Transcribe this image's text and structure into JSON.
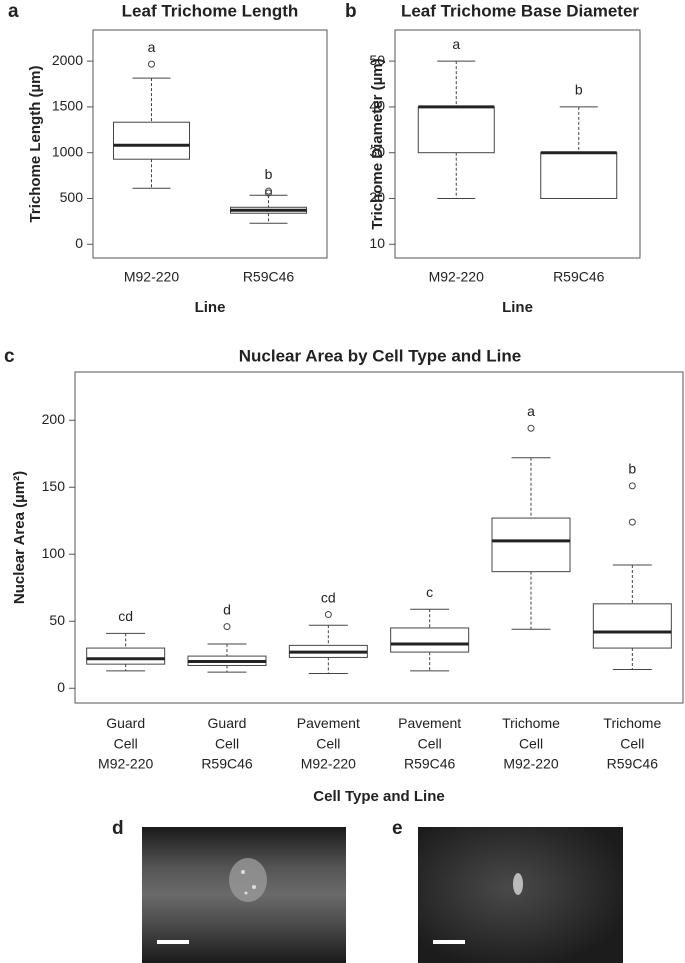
{
  "chart_data": [
    {
      "type": "box",
      "panel_label": "a",
      "title": "Leaf Trichome Length",
      "xlabel": "Line",
      "ylabel": "Trichome Length (µm)",
      "categories": [
        "M92-220",
        "R59C46"
      ],
      "boxes": [
        {
          "min": 612,
          "q1": 929,
          "median": 1082,
          "q3": 1333,
          "max": 1814,
          "outliers": [
            1967
          ]
        },
        {
          "min": 230,
          "q1": 339,
          "median": 372,
          "q3": 404,
          "max": 535,
          "outliers": [
            580,
            560
          ]
        }
      ],
      "annotations": [
        "a",
        "b"
      ],
      "ylim": [
        -150,
        2340
      ],
      "yticks": [
        0,
        500,
        1000,
        1500,
        2000
      ]
    },
    {
      "type": "box",
      "panel_label": "b",
      "title": "Leaf Trichome Base Diameter",
      "xlabel": "Line",
      "ylabel": "Trichome Diameter (µm)",
      "categories": [
        "M92-220",
        "R59C46"
      ],
      "boxes": [
        {
          "min": 20,
          "q1": 30,
          "median": 40,
          "q3": 40,
          "max": 50,
          "outliers": []
        },
        {
          "min": 20,
          "q1": 20,
          "median": 30,
          "q3": 30,
          "max": 40,
          "outliers": []
        }
      ],
      "annotations": [
        "a",
        "b"
      ],
      "ylim": [
        7,
        56.8
      ],
      "yticks": [
        10,
        20,
        30,
        40,
        50
      ]
    },
    {
      "type": "box",
      "panel_label": "c",
      "title": "Nuclear Area by Cell Type and Line",
      "xlabel": "Cell Type and Line",
      "ylabel": "Nuclear Area  (µm²)",
      "categories": [
        "Guard\nCell\nM92-220",
        "Guard\nCell\nR59C46",
        "Pavement\nCell\nM92-220",
        "Pavement\nCell\nR59C46",
        "Trichome\nCell\nM92-220",
        "Trichome\nCell\nR59C46"
      ],
      "boxes": [
        {
          "min": 13,
          "q1": 18,
          "median": 22,
          "q3": 30,
          "max": 41,
          "outliers": []
        },
        {
          "min": 12,
          "q1": 17,
          "median": 20,
          "q3": 24,
          "max": 33,
          "outliers": [
            46
          ]
        },
        {
          "min": 11,
          "q1": 23,
          "median": 27,
          "q3": 32,
          "max": 47,
          "outliers": [
            55
          ]
        },
        {
          "min": 13,
          "q1": 27,
          "median": 33,
          "q3": 45,
          "max": 59,
          "outliers": []
        },
        {
          "min": 44,
          "q1": 87,
          "median": 110,
          "q3": 127,
          "max": 172,
          "outliers": [
            194
          ]
        },
        {
          "min": 14,
          "q1": 30,
          "median": 42,
          "q3": 63,
          "max": 92,
          "outliers": [
            151,
            124
          ]
        }
      ],
      "annotations": [
        "cd",
        "d",
        "cd",
        "c",
        "a",
        "b"
      ],
      "ylim": [
        -11,
        236
      ],
      "yticks": [
        0,
        50,
        100,
        150,
        200
      ]
    }
  ],
  "images": [
    {
      "panel_label": "d"
    },
    {
      "panel_label": "e"
    }
  ]
}
